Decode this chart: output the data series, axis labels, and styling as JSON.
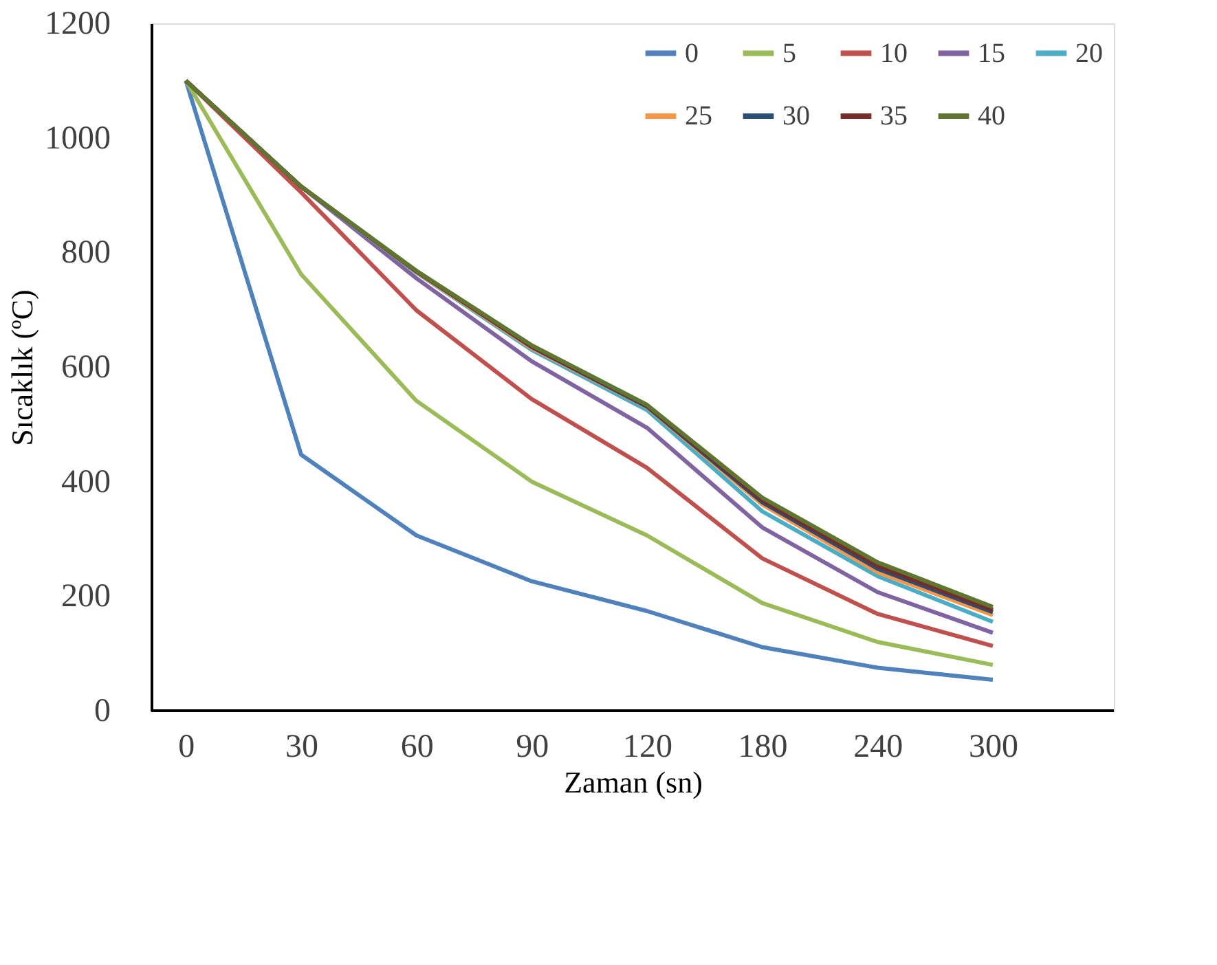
{
  "chart_data": {
    "type": "line",
    "xlabel": "Zaman (sn)",
    "ylabel": "Sıcaklık (ºC)",
    "categories": [
      "0",
      "30",
      "60",
      "90",
      "120",
      "180",
      "240",
      "300"
    ],
    "ylim": [
      0,
      1200
    ],
    "yticks": [
      0,
      200,
      400,
      600,
      800,
      1000,
      1200
    ],
    "grid": false,
    "legend": "top right",
    "marker": "none",
    "line_style": "solid",
    "series": [
      {
        "name": "0",
        "color": "#4f81bd",
        "values": [
          1100,
          447,
          306,
          226,
          174,
          111,
          75,
          54
        ]
      },
      {
        "name": "5",
        "color": "#9bbb59",
        "values": [
          1100,
          762,
          541,
          400,
          306,
          188,
          120,
          80
        ]
      },
      {
        "name": "10",
        "color": "#c0504d",
        "values": [
          1100,
          905,
          699,
          544,
          424,
          266,
          169,
          113
        ]
      },
      {
        "name": "15",
        "color": "#8064a2",
        "values": [
          1100,
          915,
          755,
          610,
          494,
          320,
          207,
          136
        ]
      },
      {
        "name": "20",
        "color": "#4bacc6",
        "values": [
          1100,
          915,
          765,
          630,
          525,
          348,
          235,
          155
        ]
      },
      {
        "name": "25",
        "color": "#f79646",
        "values": [
          1100,
          915,
          766,
          633,
          530,
          360,
          242,
          167
        ]
      },
      {
        "name": "30",
        "color": "#2c4d75",
        "values": [
          1100,
          915,
          767,
          635,
          531,
          364,
          248,
          172
        ]
      },
      {
        "name": "35",
        "color": "#772c2a",
        "values": [
          1100,
          915,
          767,
          636,
          533,
          368,
          253,
          176
        ]
      },
      {
        "name": "40",
        "color": "#5f7530",
        "values": [
          1100,
          915,
          768,
          638,
          534,
          372,
          259,
          181
        ]
      }
    ]
  }
}
